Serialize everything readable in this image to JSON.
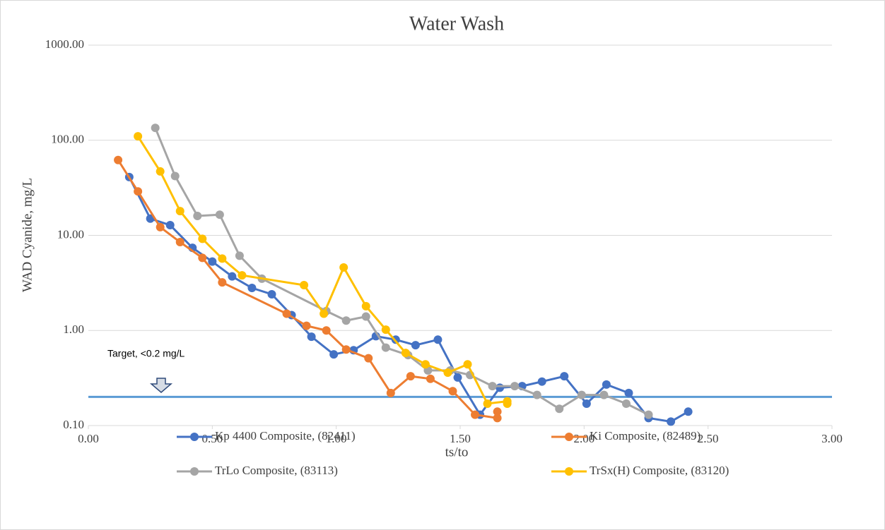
{
  "chart_data": {
    "type": "line",
    "title": "Water Wash",
    "x_label": "ts/to",
    "y_label": "WAD Cyanide, mg/L",
    "log_y": true,
    "grid": true,
    "legend": "bottom",
    "xlim": [
      0,
      3
    ],
    "xticks": [
      {
        "value": 0,
        "label": "0.00"
      },
      {
        "value": 0.5,
        "label": "0.50"
      },
      {
        "value": 1,
        "label": "1.00"
      },
      {
        "value": 1.5,
        "label": "1.50"
      },
      {
        "value": 2,
        "label": "2.00"
      },
      {
        "value": 2.5,
        "label": "2.50"
      },
      {
        "value": 3,
        "label": "3.00"
      }
    ],
    "ylim": [
      0.1,
      1000
    ],
    "yticks": [
      {
        "value": 0.1,
        "label": "0.10"
      },
      {
        "value": 1,
        "label": "1.00"
      },
      {
        "value": 10,
        "label": "10.00"
      },
      {
        "value": 100,
        "label": "100.00"
      },
      {
        "value": 1000,
        "label": "1000.00"
      }
    ],
    "target_line": 0.2,
    "target_color": "#5b9bd5",
    "annotation": "Target, <0.2 mg/L",
    "series": [
      {
        "name": "Kp 4400 Composite, (82411)",
        "color": "#4472c4",
        "x": [
          0.165,
          0.25,
          0.33,
          0.42,
          0.5,
          0.58,
          0.66,
          0.74,
          0.82,
          0.9,
          0.99,
          1.07,
          1.16,
          1.24,
          1.32,
          1.41,
          1.49,
          1.58,
          1.66,
          1.75,
          1.83,
          1.92,
          2.01,
          2.09,
          2.18,
          2.26,
          2.35,
          2.42
        ],
        "values": [
          41,
          15,
          12.8,
          7.4,
          5.3,
          3.7,
          2.8,
          2.4,
          1.45,
          0.86,
          0.56,
          0.62,
          0.87,
          0.8,
          0.7,
          0.8,
          0.32,
          0.13,
          0.25,
          0.26,
          0.29,
          0.33,
          0.17,
          0.27,
          0.22,
          0.12,
          0.11,
          0.14
        ]
      },
      {
        "name": "Ki Composite, (82489)",
        "color": "#ed7d31",
        "x": [
          0.12,
          0.2,
          0.29,
          0.37,
          0.46,
          0.54,
          0.8,
          0.88,
          0.96,
          1.04,
          1.13,
          1.22,
          1.3,
          1.38,
          1.47,
          1.56,
          1.65,
          1.65
        ],
        "values": [
          62,
          29,
          12.2,
          8.5,
          5.8,
          3.2,
          1.5,
          1.12,
          1.0,
          0.63,
          0.51,
          0.22,
          0.33,
          0.31,
          0.23,
          0.13,
          0.12,
          0.14
        ]
      },
      {
        "name": "TrLo Composite, (83113)",
        "color": "#a5a5a5",
        "x": [
          0.27,
          0.35,
          0.44,
          0.53,
          0.61,
          0.7,
          0.96,
          1.04,
          1.12,
          1.2,
          1.29,
          1.37,
          1.46,
          1.54,
          1.63,
          1.72,
          1.81,
          1.9,
          1.99,
          2.08,
          2.17,
          2.26
        ],
        "values": [
          135,
          42,
          16,
          16.5,
          6.1,
          3.5,
          1.6,
          1.27,
          1.4,
          0.66,
          0.55,
          0.38,
          0.38,
          0.34,
          0.26,
          0.26,
          0.21,
          0.15,
          0.21,
          0.21,
          0.17,
          0.13
        ]
      },
      {
        "name": "TrSx(H) Composite, (83120)",
        "color": "#ffc000",
        "x": [
          0.2,
          0.29,
          0.37,
          0.46,
          0.54,
          0.62,
          0.87,
          0.95,
          1.03,
          1.12,
          1.2,
          1.28,
          1.36,
          1.45,
          1.53,
          1.61,
          1.69,
          1.69
        ],
        "values": [
          110,
          47,
          18,
          9.2,
          5.7,
          3.8,
          3.0,
          1.5,
          4.6,
          1.8,
          1.02,
          0.58,
          0.44,
          0.36,
          0.44,
          0.17,
          0.18,
          0.17
        ]
      }
    ]
  }
}
